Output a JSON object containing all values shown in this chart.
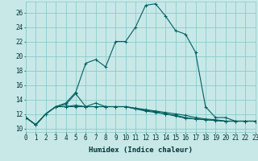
{
  "xlabel": "Humidex (Indice chaleur)",
  "xlim": [
    0,
    23
  ],
  "ylim": [
    9.5,
    27.5
  ],
  "yticks": [
    10,
    12,
    14,
    16,
    18,
    20,
    22,
    24,
    26
  ],
  "xticks": [
    0,
    1,
    2,
    3,
    4,
    5,
    6,
    7,
    8,
    9,
    10,
    11,
    12,
    13,
    14,
    15,
    16,
    17,
    18,
    19,
    20,
    21,
    22,
    23
  ],
  "bg_color": "#c8e8e8",
  "grid_color": "#88cccc",
  "line_color": "#005f5f",
  "series1": [
    11.5,
    10.5,
    12.0,
    13.0,
    13.0,
    13.2,
    13.0,
    13.0,
    13.0,
    13.0,
    13.0,
    12.7,
    12.5,
    12.3,
    12.0,
    11.8,
    11.5,
    11.3,
    11.2,
    11.1,
    11.0,
    11.0,
    11.0,
    11.0
  ],
  "series2": [
    11.5,
    10.5,
    12.0,
    13.0,
    13.3,
    14.8,
    13.0,
    13.5,
    13.0,
    13.0,
    13.0,
    12.7,
    12.4,
    12.2,
    12.0,
    11.7,
    11.4,
    11.3,
    11.2,
    11.1,
    11.0,
    11.0,
    11.0,
    11.0
  ],
  "series3": [
    11.5,
    10.5,
    12.0,
    13.0,
    13.0,
    13.0,
    13.0,
    13.0,
    13.0,
    13.0,
    13.0,
    12.8,
    12.6,
    12.4,
    12.2,
    12.0,
    11.8,
    11.5,
    11.3,
    11.2,
    11.0,
    11.0,
    11.0,
    11.0
  ],
  "series4": [
    11.5,
    10.5,
    12.0,
    13.0,
    13.5,
    15.0,
    19.0,
    19.5,
    18.5,
    22.0,
    22.0,
    24.0,
    27.0,
    27.2,
    25.5,
    23.5,
    23.0,
    20.5,
    13.0,
    11.5,
    11.5,
    11.0,
    11.0,
    11.0
  ],
  "xlabel_fontsize": 6.5,
  "tick_fontsize": 5.5
}
